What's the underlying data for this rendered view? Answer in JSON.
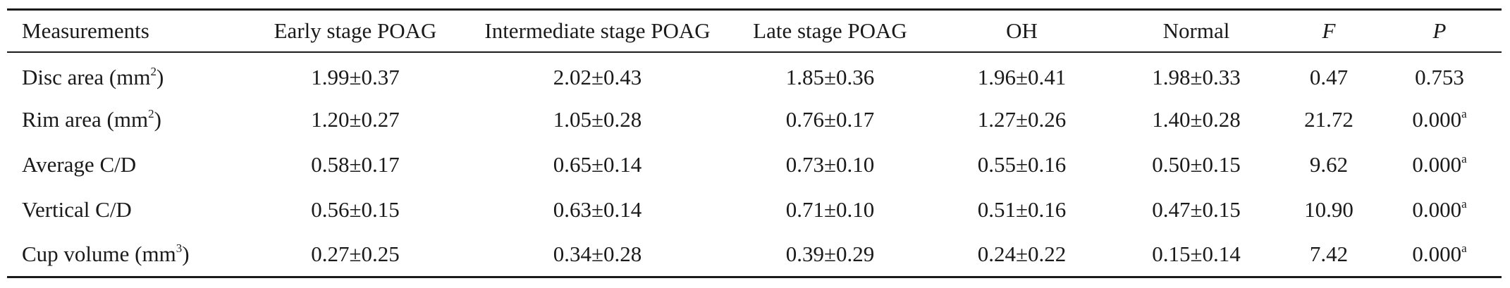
{
  "table": {
    "headers": [
      "Measurements",
      "Early stage POAG",
      "Intermediate stage POAG",
      "Late stage POAG",
      "OH",
      "Normal",
      "F",
      "P"
    ],
    "rows": [
      {
        "measure": "Disc area (mm",
        "measure_sup": "2",
        "measure_close": ")",
        "early": "1.99±0.37",
        "intermediate": "2.02±0.43",
        "late": "1.85±0.36",
        "oh": "1.96±0.41",
        "normal": "1.98±0.33",
        "f": "0.47",
        "p": "0.753",
        "p_note": ""
      },
      {
        "measure": "Rim area (mm",
        "measure_sup": "2",
        "measure_close": ")",
        "early": "1.20±0.27",
        "intermediate": "1.05±0.28",
        "late": "0.76±0.17",
        "oh": "1.27±0.26",
        "normal": "1.40±0.28",
        "f": "21.72",
        "p": "0.000",
        "p_note": "a"
      },
      {
        "measure": "Average C/D",
        "measure_sup": "",
        "measure_close": "",
        "early": "0.58±0.17",
        "intermediate": "0.65±0.14",
        "late": "0.73±0.10",
        "oh": "0.55±0.16",
        "normal": "0.50±0.15",
        "f": "9.62",
        "p": "0.000",
        "p_note": "a"
      },
      {
        "measure": "Vertical C/D",
        "measure_sup": "",
        "measure_close": "",
        "early": "0.56±0.15",
        "intermediate": "0.63±0.14",
        "late": "0.71±0.10",
        "oh": "0.51±0.16",
        "normal": "0.47±0.15",
        "f": "10.90",
        "p": "0.000",
        "p_note": "a"
      },
      {
        "measure": "Cup volume (mm",
        "measure_sup": "3",
        "measure_close": ")",
        "early": "0.27±0.25",
        "intermediate": "0.34±0.28",
        "late": "0.39±0.29",
        "oh": "0.24±0.22",
        "normal": "0.15±0.14",
        "f": "7.42",
        "p": "0.000",
        "p_note": "a"
      }
    ]
  }
}
